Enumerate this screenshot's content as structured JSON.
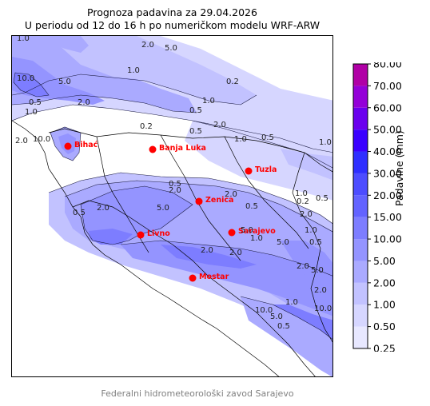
{
  "title": {
    "line1": "Prognoza padavina za 29.04.2026",
    "line2": "U periodu od 12 do 16 h po numeričkom modelu WRF-ARW"
  },
  "footer": "Federalni hidrometeorološki zavod Sarajevo",
  "colorbar": {
    "label": "Padavine (mm)",
    "levels": [
      "0.25",
      "0.50",
      "1.00",
      "2.00",
      "5.00",
      "10.00",
      "15.00",
      "20.00",
      "30.00",
      "40.00",
      "50.00",
      "60.00",
      "70.00",
      "80.00"
    ],
    "colors": [
      "#e8e8ff",
      "#d6d6ff",
      "#c2c2ff",
      "#aaaaff",
      "#9494ff",
      "#7d7dff",
      "#6363ff",
      "#4d4dff",
      "#2f2fff",
      "#3a00ff",
      "#6a00ee",
      "#9400d8",
      "#b000a6"
    ]
  },
  "cities": [
    {
      "name": "Bihać",
      "color": "#ff0000"
    },
    {
      "name": "Banja Luka",
      "color": "#ff0000"
    },
    {
      "name": "Tuzla",
      "color": "#ff0000"
    },
    {
      "name": "Zenica",
      "color": "#ff0000"
    },
    {
      "name": "Livno",
      "color": "#ff0000"
    },
    {
      "name": "Sarajevo",
      "color": "#ff0000"
    },
    {
      "name": "Mostar",
      "color": "#ff0000"
    }
  ],
  "contour_labels": [
    "1.0",
    "2.0",
    "5.0",
    "1.0",
    "0.2",
    "0.5",
    "1.0",
    "10.0",
    "5.0",
    "2.0",
    "0.5",
    "2.0",
    "1.0",
    "0.2",
    "0.5",
    "2.0",
    "1.0",
    "0.5",
    "1.0",
    "2.0",
    "0.5",
    "5.0",
    "2.0",
    "1.0",
    "5.0",
    "2.0",
    "0.5",
    "1.0",
    "0.5",
    "2.0",
    "5.0",
    "2.0",
    "10.0",
    "5.0",
    "1.0",
    "0.5",
    "2.0",
    "5.0",
    "10.0",
    "10.0",
    "2.0",
    "1.0",
    "0.5",
    "0.2",
    "2.0",
    "0.5",
    "0.5"
  ]
}
